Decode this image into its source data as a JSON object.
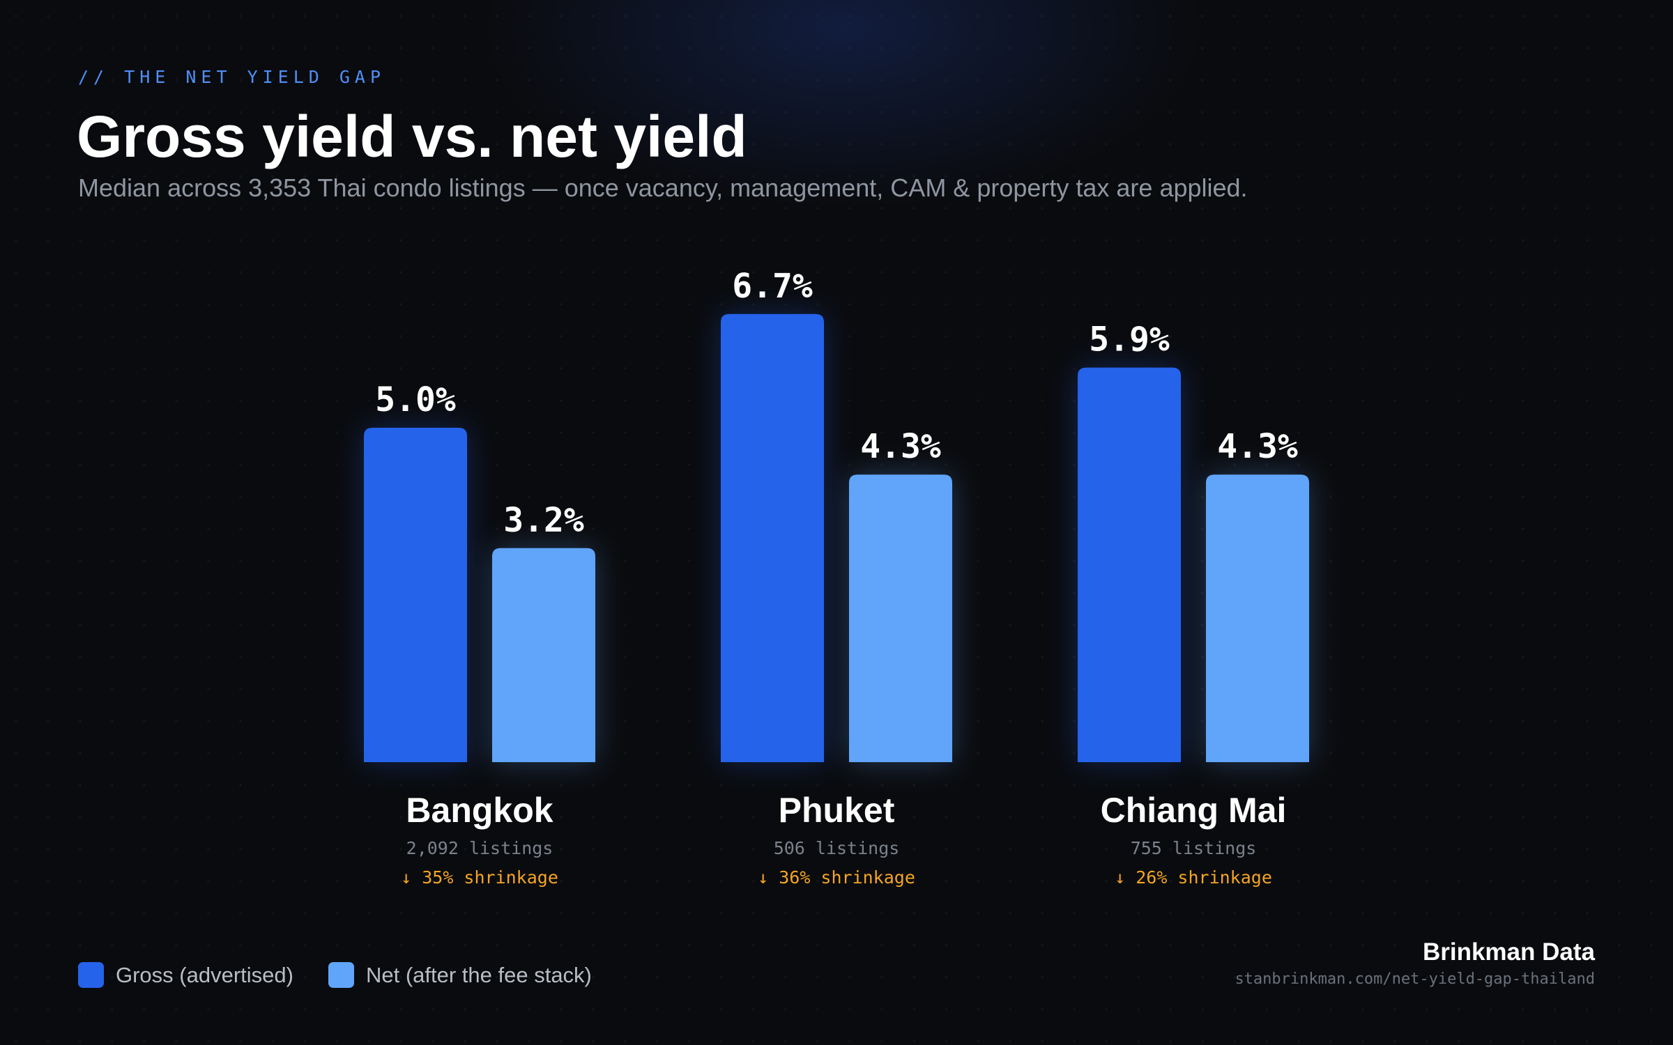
{
  "header": {
    "kicker": "// THE NET YIELD GAP",
    "title": "Gross yield vs. net yield",
    "subtitle": "Median across 3,353 Thai condo listings — once vacancy, management, CAM & property tax are applied."
  },
  "chart_data": {
    "type": "bar",
    "title": "Gross yield vs. net yield",
    "subtitle": "Median across 3,353 Thai condo listings — once vacancy, management, CAM & property tax are applied.",
    "value_suffix": "%",
    "categories": [
      "Bangkok",
      "Phuket",
      "Chiang Mai"
    ],
    "category_notes": [
      {
        "listings": "2,092 listings",
        "shrinkage": "↓ 35% shrinkage"
      },
      {
        "listings": "506 listings",
        "shrinkage": "↓ 36% shrinkage"
      },
      {
        "listings": "755 listings",
        "shrinkage": "↓ 26% shrinkage"
      }
    ],
    "series": [
      {
        "name": "Gross (advertised)",
        "values": [
          5.0,
          6.7,
          5.9
        ],
        "color": "#2563eb"
      },
      {
        "name": "Net (after the fee stack)",
        "values": [
          3.2,
          4.3,
          4.3
        ],
        "color": "#60a5fa"
      }
    ],
    "ylim": [
      0,
      7.5
    ],
    "grid": false,
    "legend_position": "bottom-left",
    "colors": {
      "value_label": "#ffffff",
      "category_label": "#ffffff",
      "listings_label": "#7b828c",
      "shrinkage_label": "#f5a524"
    }
  },
  "footer": {
    "brand": "Brinkman Data",
    "url": "stanbrinkman.com/net-yield-gap-thailand"
  }
}
